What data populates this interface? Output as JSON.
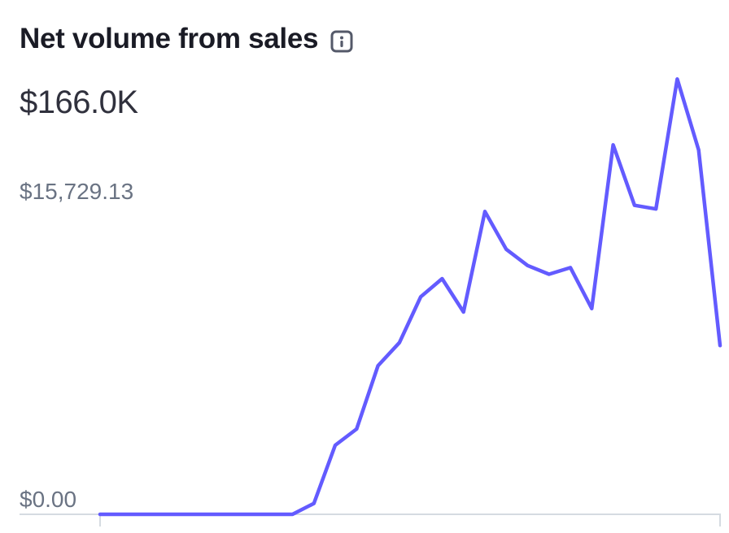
{
  "header": {
    "title": "Net volume from sales",
    "info_icon": "info-icon",
    "amount": "$166.0K"
  },
  "colors": {
    "line": "#635bff",
    "axis": "#d5dbe1",
    "tick_text": "#6a7383"
  },
  "chart_data": {
    "type": "line",
    "title": "",
    "xlabel": "",
    "ylabel": "",
    "ylim": [
      0,
      15729.13
    ],
    "ytick_labels": [
      "$15,729.13",
      "$0.00"
    ],
    "grid": false,
    "series": [
      {
        "values": [
          0,
          0,
          0,
          0,
          0,
          0,
          0,
          0,
          0,
          0,
          530,
          3360,
          4150,
          7230,
          8350,
          10580,
          11460,
          9840,
          14730,
          12890,
          12100,
          11680,
          12000,
          10010,
          17970,
          15030,
          14850,
          21170,
          17720,
          8210
        ]
      }
    ]
  }
}
